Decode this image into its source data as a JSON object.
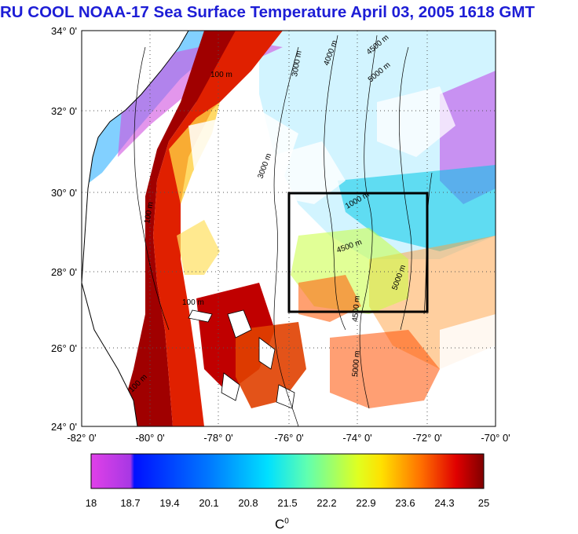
{
  "title": "RU COOL  NOAA-17 Sea Surface Temperature April 03, 2005 1618 GMT",
  "map": {
    "lat_labels": [
      "34° 0'",
      "32° 0'",
      "30° 0'",
      "28° 0'",
      "26° 0'",
      "24° 0'"
    ],
    "lat_values": [
      34,
      32,
      30,
      28,
      26,
      24
    ],
    "lon_labels": [
      "-82° 0'",
      "-80° 0'",
      "-78° 0'",
      "-76° 0'",
      "-74° 0'",
      "-72° 0'",
      "-70° 0'"
    ],
    "lon_values": [
      -82,
      -80,
      -78,
      -76,
      -74,
      -72,
      -70
    ],
    "lat_range": [
      24,
      34
    ],
    "lon_range": [
      -82,
      -70
    ],
    "study_box": {
      "lon": [
        -76,
        -72
      ],
      "lat": [
        27,
        30
      ]
    },
    "contour_labels": [
      "100 m",
      "1000 m",
      "3000 m",
      "4000 m",
      "4500 m",
      "5000 m"
    ],
    "grid": "dotted"
  },
  "colorbar": {
    "min": 18,
    "max": 25,
    "ticks": [
      "18",
      "18.7",
      "19.4",
      "20.1",
      "20.8",
      "21.5",
      "22.2",
      "22.9",
      "23.6",
      "24.3",
      "25"
    ],
    "unit": "C",
    "unit_sup": "0",
    "colors": [
      "#e040e8",
      "#8a30e0",
      "#0018ff",
      "#0070ff",
      "#00c8ff",
      "#40ffd0",
      "#c0ff40",
      "#ffff00",
      "#ffa000",
      "#ff3000",
      "#c00000",
      "#8a0000"
    ]
  }
}
